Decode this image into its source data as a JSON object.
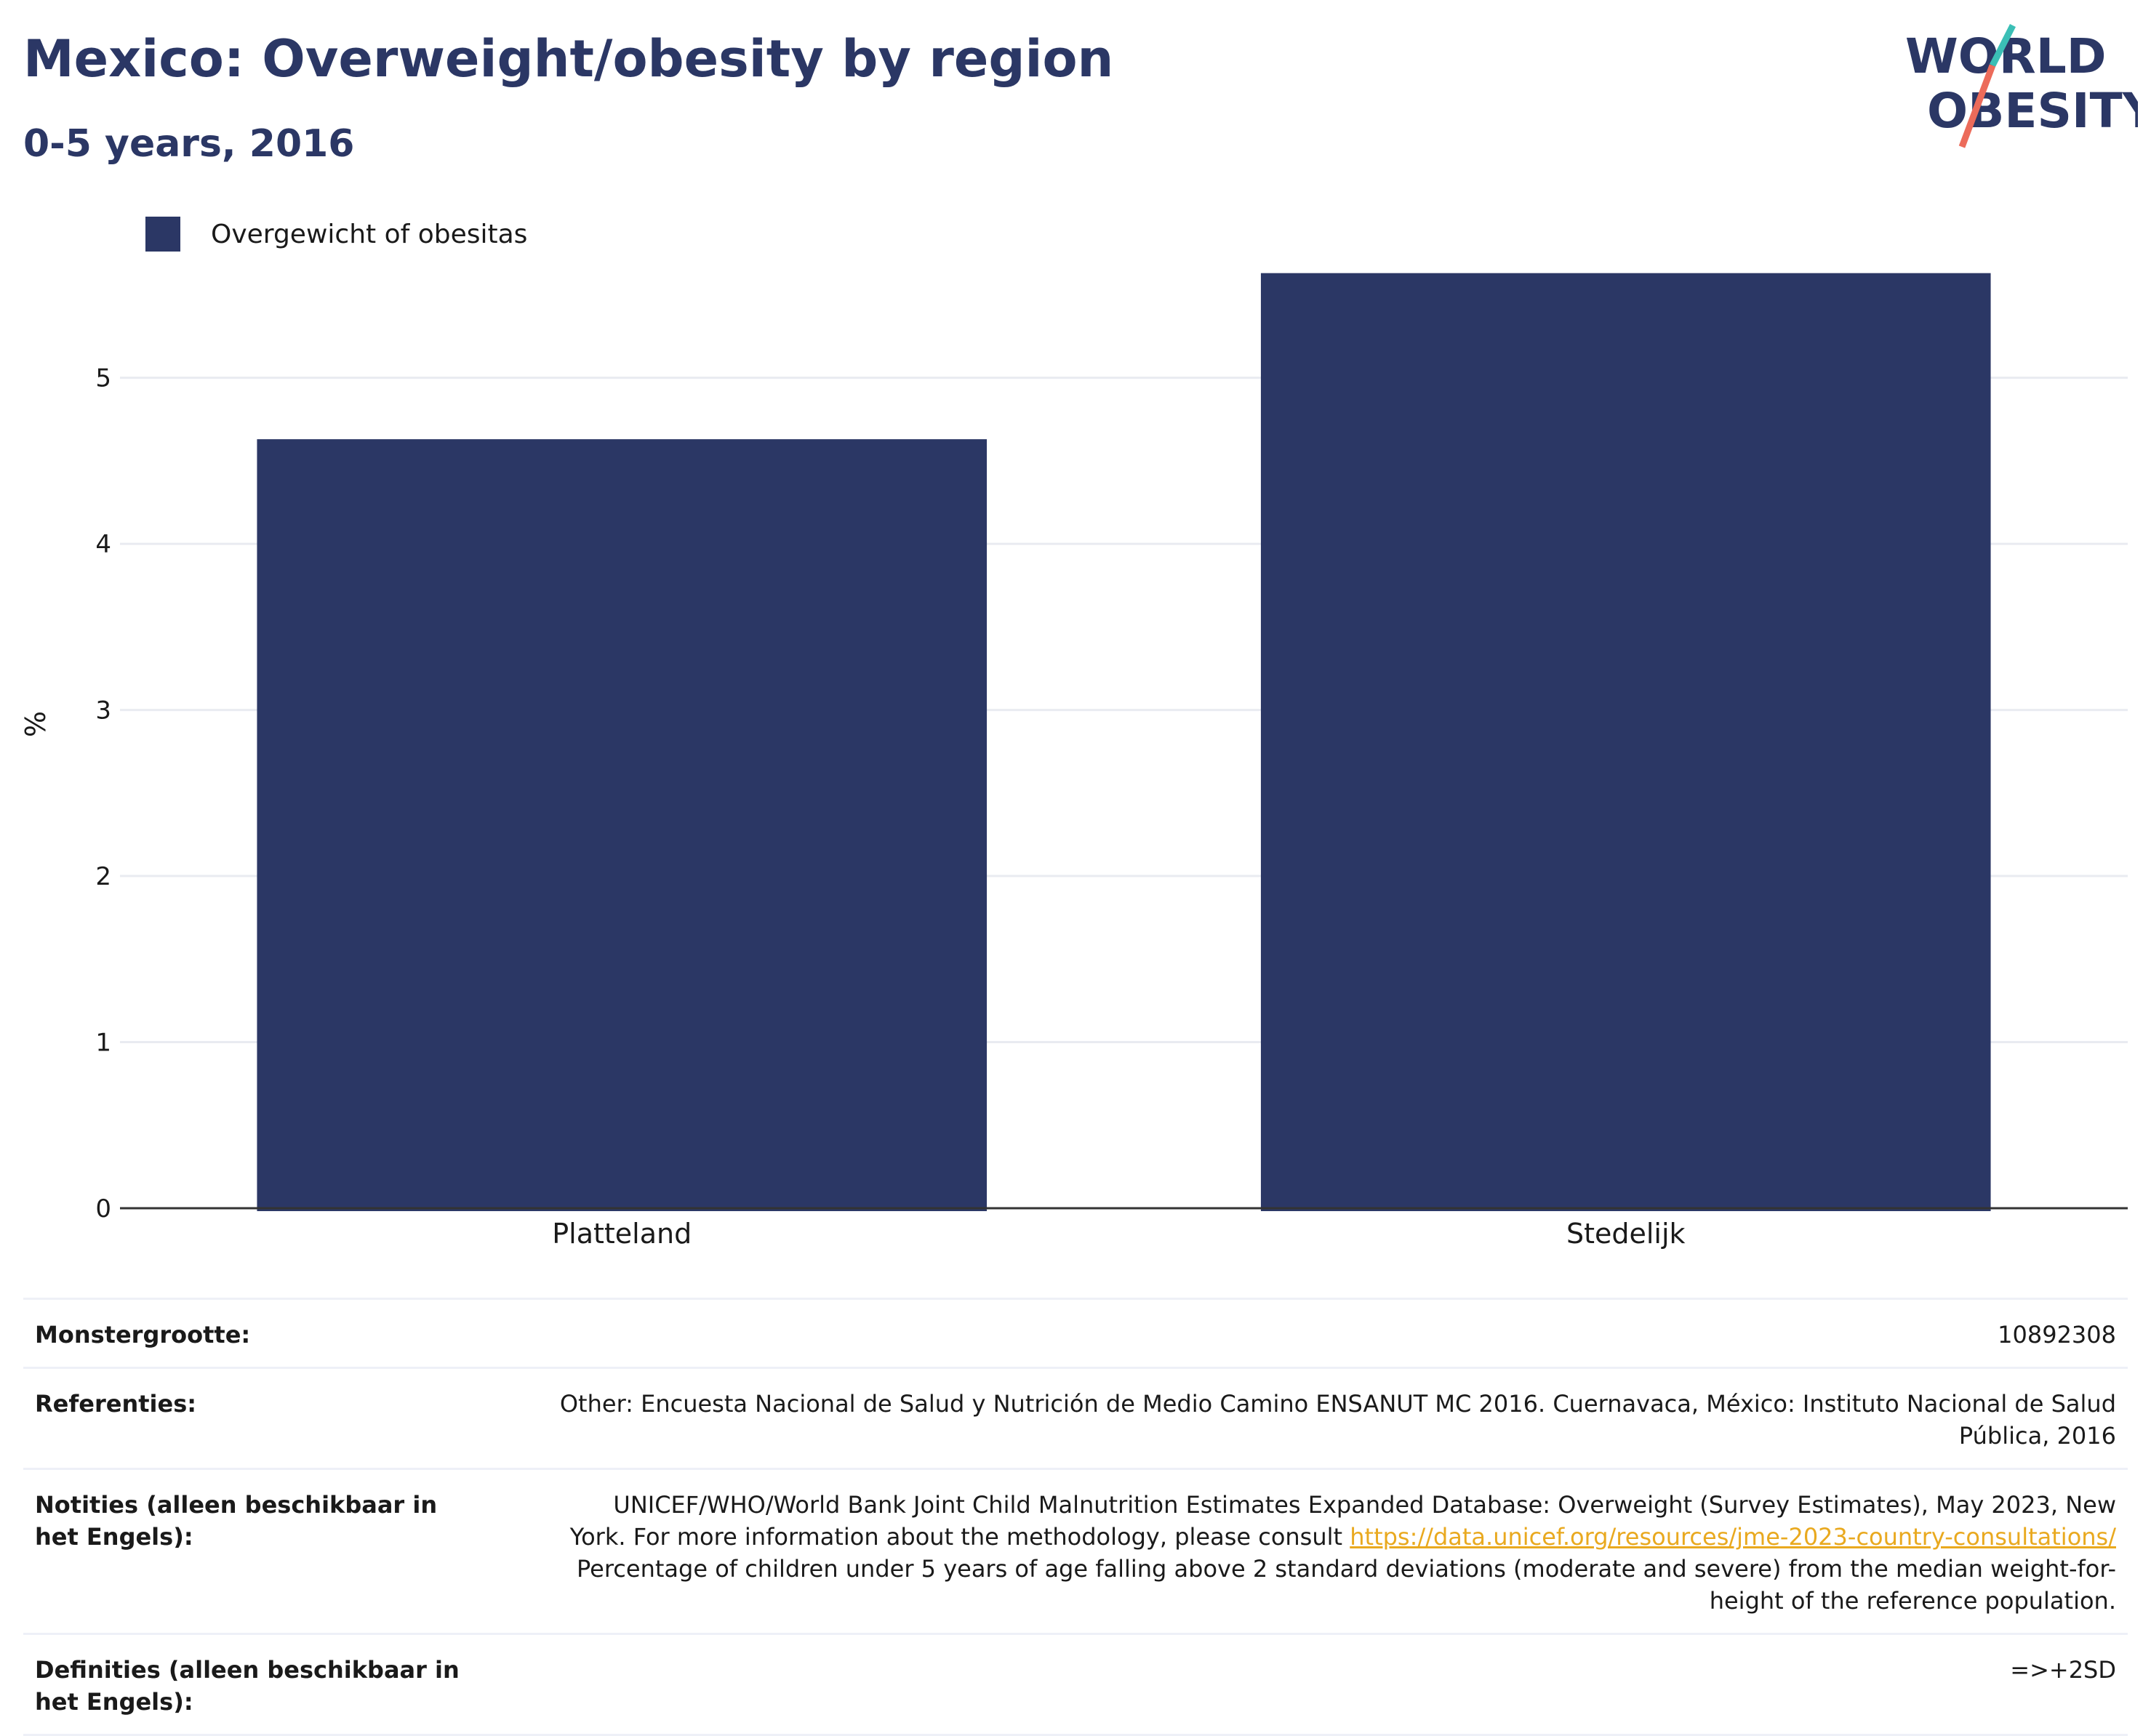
{
  "header": {
    "title": "Mexico: Overweight/obesity by region",
    "subtitle": "0-5 years, 2016"
  },
  "logo": {
    "line1": "WORLD",
    "line2": "OBESITY"
  },
  "colors": {
    "bar": "#2b3765",
    "title": "#2b3765",
    "grid": "#e9ebf1",
    "link": "#e9a91f",
    "logo_teal": "#3bbfb6",
    "logo_coral": "#ec6b5a"
  },
  "chart_data": {
    "type": "bar",
    "categories": [
      "Platteland",
      "Stedelijk"
    ],
    "series": [
      {
        "name": "Overgewicht of obesitas",
        "values": [
          4.63,
          5.63
        ]
      }
    ],
    "ylabel": "%",
    "xlabel": "",
    "ylim": [
      0,
      5.83
    ],
    "yticks": [
      0,
      1,
      2,
      3,
      4,
      5
    ],
    "grid": true,
    "legend": "top-left"
  },
  "info": {
    "sample_label": "Monstergrootte:",
    "sample_value": "10892308",
    "refs_label": "Referenties:",
    "refs_value": "Other: Encuesta Nacional de Salud y Nutrición de Medio Camino ENSANUT MC 2016. Cuernavaca, México: Instituto Nacional de Salud Pública, 2016",
    "notes_label": "Notities (alleen beschikbaar in het Engels):",
    "notes_pre": "UNICEF/WHO/World Bank Joint Child Malnutrition Estimates Expanded Database: Overweight (Survey Estimates), May 2023, New York. For more information about the methodology, please consult",
    "notes_link": "https://data.unicef.org/resources/jme-2023-country-consultations/",
    "notes_post": "Percentage of children under 5 years of age falling above 2 standard deviations (moderate and severe) from the median weight-for-height of the reference population.",
    "defs_label": "Definities (alleen beschikbaar in het Engels):",
    "defs_value": "=>+2SD"
  }
}
